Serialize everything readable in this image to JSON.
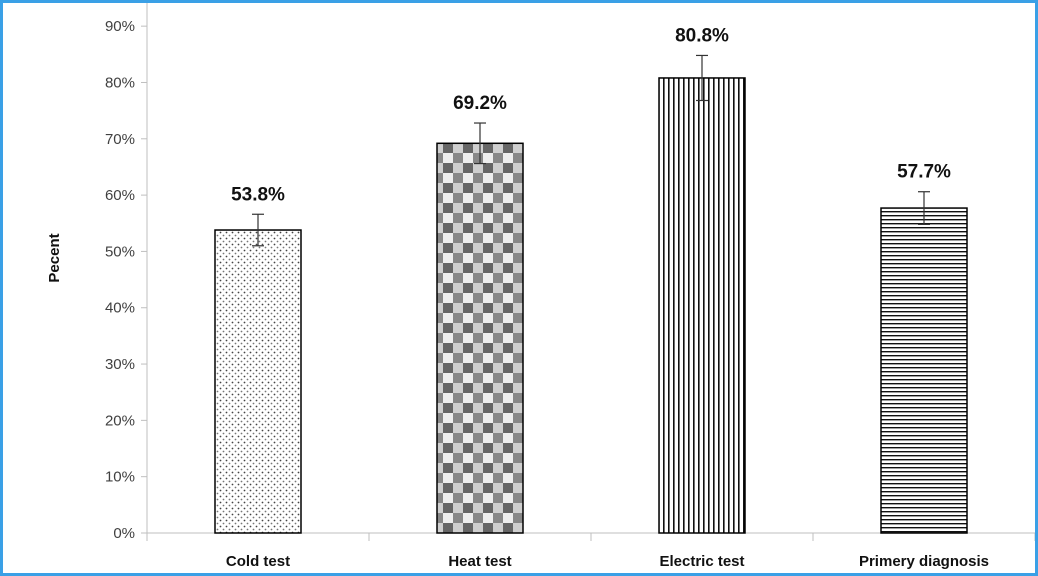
{
  "chart_data": {
    "type": "bar",
    "title": "",
    "xlabel": "",
    "ylabel": "Pecent",
    "ylim": [
      0,
      95
    ],
    "y_ticks": [
      0,
      10,
      20,
      30,
      40,
      50,
      60,
      70,
      80,
      90
    ],
    "y_tick_labels": [
      "0%",
      "10%",
      "20%",
      "30%",
      "40%",
      "50%",
      "60%",
      "70%",
      "80%",
      "90%"
    ],
    "grid": false,
    "legend": "none",
    "categories": [
      "Cold test",
      "Heat test",
      "Electric test",
      "Primery diagnosis"
    ],
    "values": [
      53.8,
      69.2,
      80.8,
      57.7
    ],
    "data_labels": [
      "53.8%",
      "69.2%",
      "80.8%",
      "57.7%"
    ],
    "error_bars": [
      {
        "low": 51.0,
        "high": 56.6
      },
      {
        "low": 65.6,
        "high": 72.8
      },
      {
        "low": 76.8,
        "high": 84.8
      },
      {
        "low": 54.8,
        "high": 60.6
      }
    ],
    "patterns": [
      "fine-dots",
      "checker",
      "vertical-lines",
      "horizontal-lines"
    ],
    "colors": {
      "frame": "#3aa0e6",
      "axis": "#bfbfbf",
      "bar_edge": "#000000"
    }
  }
}
